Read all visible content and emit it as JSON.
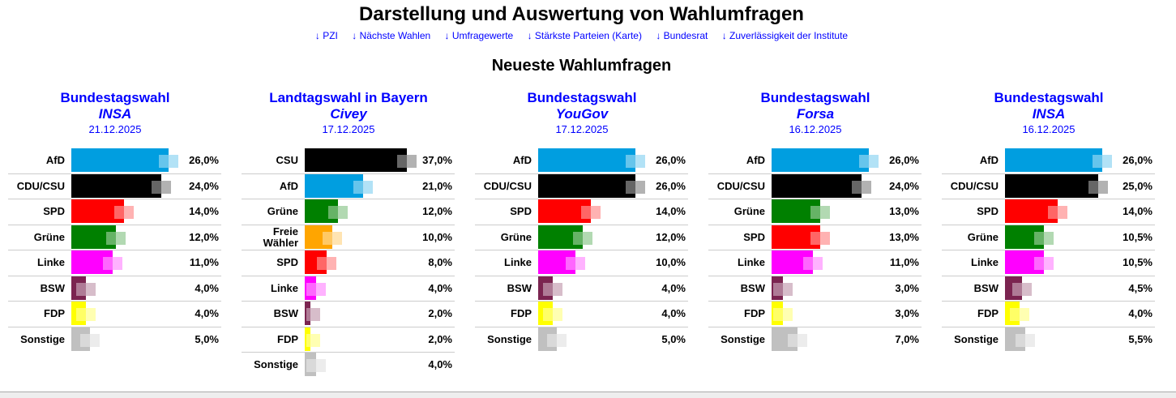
{
  "title": "Darstellung und Auswertung von Wahlumfragen",
  "nav": [
    "↓ PZI",
    "↓ Nächste Wahlen",
    "↓ Umfragewerte",
    "↓ Stärkste Parteien (Karte)",
    "↓ Bundesrat",
    "↓ Zuverlässigkeit der Institute"
  ],
  "section_title": "Neueste Wahlumfragen",
  "colors": {
    "AfD": "#009ee0",
    "CDU/CSU": "#000000",
    "CSU": "#000000",
    "SPD": "#ff0000",
    "Grüne": "#008000",
    "Linke": "#ff00ff",
    "BSW": "#7b2450",
    "FDP": "#ffff00",
    "Sonstige": "#c0c0c0",
    "Freie Wähler": "#ffa500"
  },
  "polls": [
    {
      "election": "Bundestagswahl",
      "institute": "INSA",
      "date": "21.12.2025",
      "results": [
        {
          "party": "AfD",
          "value": 26.0,
          "label": "26,0%"
        },
        {
          "party": "CDU/CSU",
          "value": 24.0,
          "label": "24,0%"
        },
        {
          "party": "SPD",
          "value": 14.0,
          "label": "14,0%"
        },
        {
          "party": "Grüne",
          "value": 12.0,
          "label": "12,0%"
        },
        {
          "party": "Linke",
          "value": 11.0,
          "label": "11,0%"
        },
        {
          "party": "BSW",
          "value": 4.0,
          "label": "4,0%"
        },
        {
          "party": "FDP",
          "value": 4.0,
          "label": "4,0%"
        },
        {
          "party": "Sonstige",
          "value": 5.0,
          "label": "5,0%"
        }
      ]
    },
    {
      "election": "Landtagswahl in Bayern",
      "institute": "Civey",
      "date": "17.12.2025",
      "results": [
        {
          "party": "CSU",
          "value": 37.0,
          "label": "37,0%"
        },
        {
          "party": "AfD",
          "value": 21.0,
          "label": "21,0%"
        },
        {
          "party": "Grüne",
          "value": 12.0,
          "label": "12,0%"
        },
        {
          "party": "Freie Wähler",
          "value": 10.0,
          "label": "10,0%"
        },
        {
          "party": "SPD",
          "value": 8.0,
          "label": "8,0%"
        },
        {
          "party": "Linke",
          "value": 4.0,
          "label": "4,0%"
        },
        {
          "party": "BSW",
          "value": 2.0,
          "label": "2,0%"
        },
        {
          "party": "FDP",
          "value": 2.0,
          "label": "2,0%"
        },
        {
          "party": "Sonstige",
          "value": 4.0,
          "label": "4,0%"
        }
      ]
    },
    {
      "election": "Bundestagswahl",
      "institute": "YouGov",
      "date": "17.12.2025",
      "results": [
        {
          "party": "AfD",
          "value": 26.0,
          "label": "26,0%"
        },
        {
          "party": "CDU/CSU",
          "value": 26.0,
          "label": "26,0%"
        },
        {
          "party": "SPD",
          "value": 14.0,
          "label": "14,0%"
        },
        {
          "party": "Grüne",
          "value": 12.0,
          "label": "12,0%"
        },
        {
          "party": "Linke",
          "value": 10.0,
          "label": "10,0%"
        },
        {
          "party": "BSW",
          "value": 4.0,
          "label": "4,0%"
        },
        {
          "party": "FDP",
          "value": 4.0,
          "label": "4,0%"
        },
        {
          "party": "Sonstige",
          "value": 5.0,
          "label": "5,0%"
        }
      ]
    },
    {
      "election": "Bundestagswahl",
      "institute": "Forsa",
      "date": "16.12.2025",
      "results": [
        {
          "party": "AfD",
          "value": 26.0,
          "label": "26,0%"
        },
        {
          "party": "CDU/CSU",
          "value": 24.0,
          "label": "24,0%"
        },
        {
          "party": "Grüne",
          "value": 13.0,
          "label": "13,0%"
        },
        {
          "party": "SPD",
          "value": 13.0,
          "label": "13,0%"
        },
        {
          "party": "Linke",
          "value": 11.0,
          "label": "11,0%"
        },
        {
          "party": "BSW",
          "value": 3.0,
          "label": "3,0%"
        },
        {
          "party": "FDP",
          "value": 3.0,
          "label": "3,0%"
        },
        {
          "party": "Sonstige",
          "value": 7.0,
          "label": "7,0%"
        }
      ]
    },
    {
      "election": "Bundestagswahl",
      "institute": "INSA",
      "date": "16.12.2025",
      "results": [
        {
          "party": "AfD",
          "value": 26.0,
          "label": "26,0%"
        },
        {
          "party": "CDU/CSU",
          "value": 25.0,
          "label": "25,0%"
        },
        {
          "party": "SPD",
          "value": 14.0,
          "label": "14,0%"
        },
        {
          "party": "Grüne",
          "value": 10.5,
          "label": "10,5%"
        },
        {
          "party": "Linke",
          "value": 10.5,
          "label": "10,5%"
        },
        {
          "party": "BSW",
          "value": 4.5,
          "label": "4,5%"
        },
        {
          "party": "FDP",
          "value": 4.0,
          "label": "4,0%"
        },
        {
          "party": "Sonstige",
          "value": 5.5,
          "label": "5,5%"
        }
      ]
    }
  ]
}
